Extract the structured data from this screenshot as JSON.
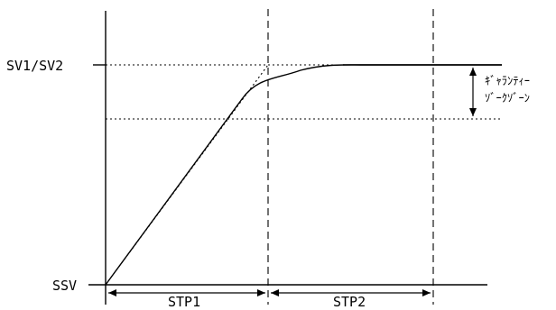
{
  "labels": {
    "sv": "SV1/SV2",
    "ssv": "SSV",
    "stp1": "STP1",
    "stp2": "STP2",
    "guarantee_zone_line1": "ｷﾞｬﾗﾝﾃｨｰ",
    "guarantee_zone_line2": "ｿﾞｰｸｿﾞｰﾝ"
  }
}
